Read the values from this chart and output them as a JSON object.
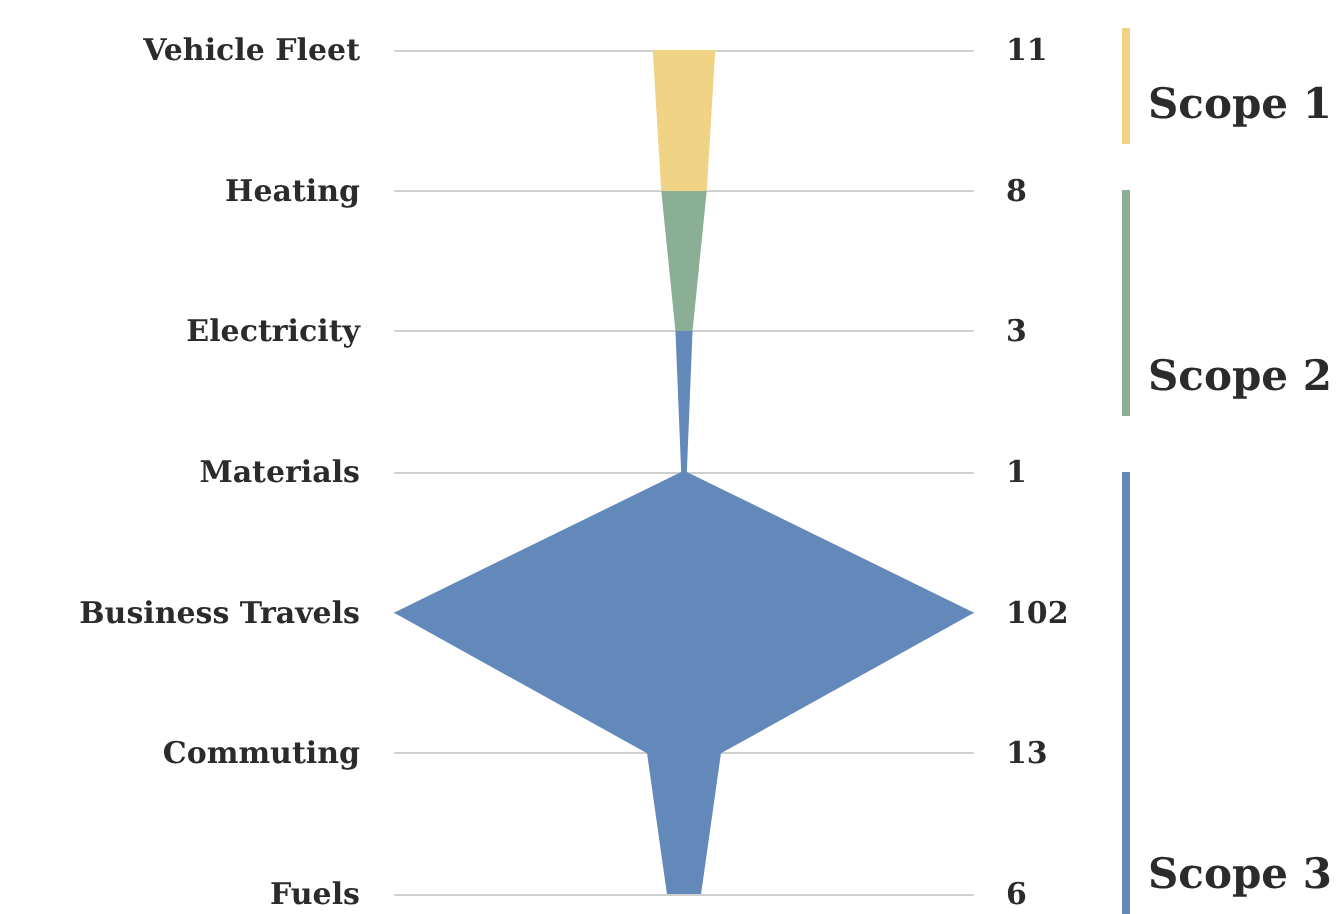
{
  "chart_data": {
    "type": "other",
    "categories": [
      "Vehicle Fleet",
      "Heating",
      "Electricity",
      "Materials",
      "Business Travels",
      "Commuting",
      "Fuels"
    ],
    "values": [
      11,
      8,
      3,
      1,
      102,
      13,
      6
    ],
    "colors": [
      "#f0d384",
      "#8aaf94",
      "#6388ba",
      "#6388ba",
      "#6388ba",
      "#6388ba",
      "#6388ba"
    ],
    "data_labels": true,
    "annotations": [
      "Scope 1",
      "Scope 2",
      "Scope 3"
    ]
  }
}
